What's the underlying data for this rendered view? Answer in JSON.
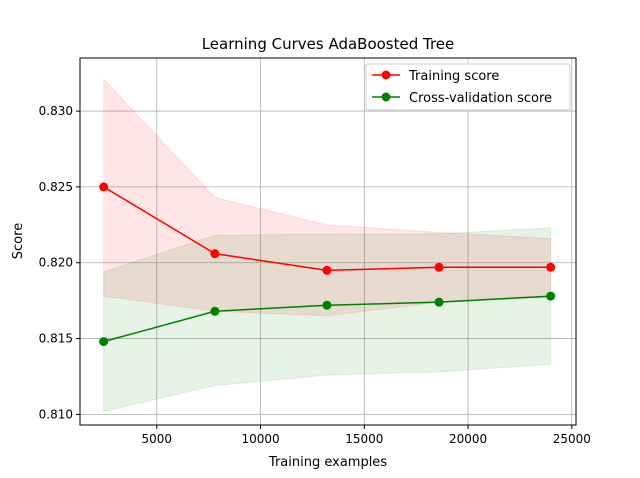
{
  "chart_data": {
    "type": "line",
    "title": "Learning Curves AdaBoosted Tree",
    "xlabel": "Training examples",
    "ylabel": "Score",
    "xlim": [
      1300,
      25200
    ],
    "ylim": [
      0.8093,
      0.8335
    ],
    "xticks": [
      5000,
      10000,
      15000,
      20000,
      25000
    ],
    "xtick_labels": [
      "5000",
      "10000",
      "15000",
      "20000",
      "25000"
    ],
    "yticks": [
      0.81,
      0.815,
      0.82,
      0.825,
      0.83
    ],
    "ytick_labels": [
      "0.810",
      "0.815",
      "0.820",
      "0.825",
      "0.830"
    ],
    "grid": true,
    "legend_position": "top-right",
    "x": [
      2440,
      7800,
      13200,
      18600,
      23980
    ],
    "series": [
      {
        "name": "Training score",
        "color": "#ff0000",
        "band_color": "#ff0000",
        "values": [
          0.825,
          0.8206,
          0.8195,
          0.8197,
          0.8197
        ],
        "upper": [
          0.8321,
          0.8243,
          0.8225,
          0.822,
          0.8216
        ],
        "lower": [
          0.8178,
          0.8168,
          0.8165,
          0.8174,
          0.8177
        ]
      },
      {
        "name": "Cross-validation score",
        "color": "#008000",
        "band_color": "#008000",
        "values": [
          0.8148,
          0.8168,
          0.8172,
          0.8174,
          0.8178
        ],
        "upper": [
          0.8194,
          0.8218,
          0.8219,
          0.8219,
          0.8223
        ],
        "lower": [
          0.8102,
          0.8119,
          0.8126,
          0.8128,
          0.8133
        ]
      }
    ]
  }
}
